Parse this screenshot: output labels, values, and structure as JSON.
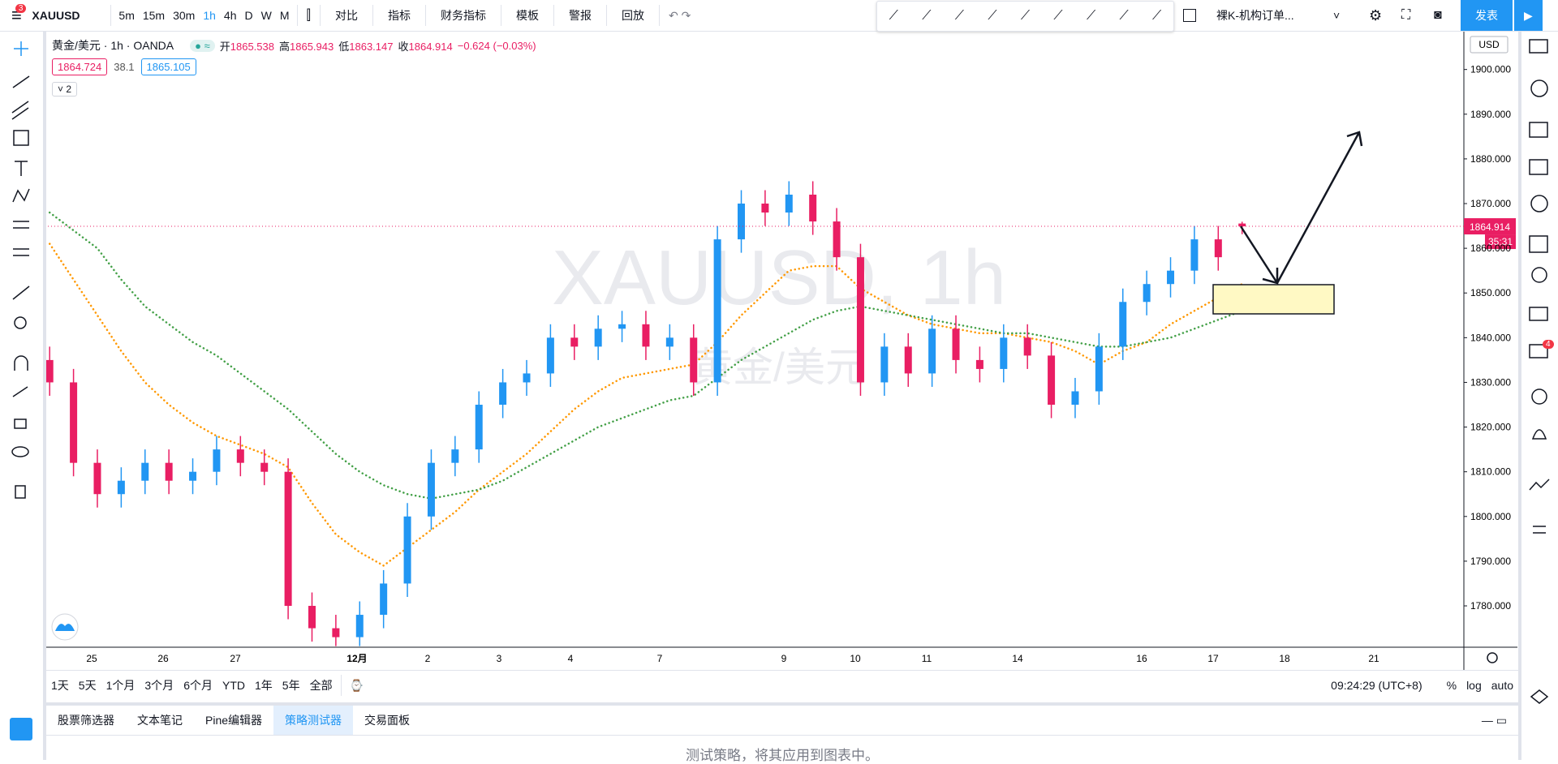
{
  "top_toolbar": {
    "badge": "3",
    "symbol": "XAUUSD",
    "intervals": [
      "5m",
      "15m",
      "30m",
      "1h",
      "4h",
      "D",
      "W",
      "M"
    ],
    "buttons": [
      "对比",
      "指标",
      "财务指标",
      "模板",
      "警报",
      "回放"
    ],
    "layout_name": "裸K-机构订单...",
    "publish": "发表"
  },
  "legend": {
    "title": "黄金/美元 · 1h · OANDA",
    "open_label": "开",
    "high_label": "高",
    "low_label": "低",
    "close_label": "收",
    "change": "−0.624 (−0.03%)",
    "bid": "1864.724",
    "spread": "38.1",
    "ask": "1865.105",
    "collapsed_count": "2"
  },
  "chart_data": {
    "type": "candlestick",
    "watermark": "XAUUSD, 1h",
    "watermark_subtitle": "黄金/美元",
    "currency": "USD",
    "countdown": "35:31",
    "x_labels": [
      "25",
      "26",
      "27",
      "12月",
      "2",
      "3",
      "4",
      "7",
      "9",
      "10",
      "11",
      "14",
      "16",
      "17",
      "18",
      "21"
    ],
    "open": [
      1835,
      1830,
      1812,
      1805,
      1808,
      1812,
      1808,
      1810,
      1815,
      1812,
      1810,
      1780,
      1775,
      1773,
      1778,
      1785,
      1800,
      1812,
      1815,
      1825,
      1830,
      1832,
      1840,
      1838,
      1842,
      1843,
      1838,
      1840,
      1830,
      1862,
      1870,
      1868,
      1872,
      1866,
      1858,
      1830,
      1838,
      1832,
      1842,
      1835,
      1833,
      1840,
      1836,
      1825,
      1828,
      1838,
      1848,
      1852,
      1855,
      1862,
      1865.538
    ],
    "high": [
      1838,
      1833,
      1815,
      1811,
      1815,
      1815,
      1813,
      1818,
      1818,
      1815,
      1813,
      1783,
      1778,
      1781,
      1788,
      1803,
      1815,
      1818,
      1828,
      1833,
      1835,
      1843,
      1843,
      1845,
      1846,
      1846,
      1843,
      1843,
      1865,
      1873,
      1873,
      1875,
      1875,
      1869,
      1861,
      1841,
      1841,
      1845,
      1845,
      1838,
      1843,
      1843,
      1839,
      1831,
      1841,
      1851,
      1855,
      1858,
      1865,
      1865,
      1865.943
    ],
    "low": [
      1827,
      1809,
      1802,
      1802,
      1805,
      1805,
      1805,
      1807,
      1809,
      1807,
      1777,
      1772,
      1771,
      1771,
      1775,
      1782,
      1797,
      1809,
      1812,
      1822,
      1827,
      1829,
      1835,
      1835,
      1839,
      1835,
      1835,
      1827,
      1827,
      1859,
      1865,
      1865,
      1863,
      1855,
      1827,
      1827,
      1829,
      1829,
      1832,
      1830,
      1830,
      1833,
      1822,
      1822,
      1825,
      1835,
      1845,
      1849,
      1852,
      1855,
      1863.147
    ],
    "close": [
      1830,
      1812,
      1805,
      1808,
      1812,
      1808,
      1810,
      1815,
      1812,
      1810,
      1780,
      1775,
      1773,
      1778,
      1785,
      1800,
      1812,
      1815,
      1825,
      1830,
      1832,
      1840,
      1838,
      1842,
      1843,
      1838,
      1840,
      1830,
      1862,
      1870,
      1868,
      1872,
      1866,
      1858,
      1830,
      1838,
      1832,
      1842,
      1835,
      1833,
      1840,
      1836,
      1825,
      1828,
      1838,
      1848,
      1852,
      1855,
      1862,
      1858,
      1864.914
    ],
    "up_color": "#2196f3",
    "down_color": "#e91e63",
    "series": [
      {
        "color": "#ff9800",
        "values": [
          1861,
          1853,
          1845,
          1837,
          1830,
          1825,
          1821,
          1818,
          1816,
          1814,
          1811,
          1803,
          1796,
          1792,
          1789,
          1793,
          1797,
          1801,
          1806,
          1810,
          1814,
          1819,
          1824,
          1828,
          1831,
          1832,
          1833,
          1834,
          1839,
          1845,
          1850,
          1855,
          1856,
          1856,
          1851,
          1848,
          1845,
          1843,
          1842,
          1841,
          1841,
          1840,
          1839,
          1837,
          1834,
          1837,
          1839,
          1843,
          1846,
          1849,
          1852
        ]
      },
      {
        "color": "#43a047",
        "values": [
          1868,
          1864,
          1860,
          1853,
          1847,
          1843,
          1839,
          1836,
          1832,
          1828,
          1824,
          1819,
          1814,
          1810,
          1807,
          1805,
          1804,
          1805,
          1806,
          1808,
          1811,
          1814,
          1817,
          1820,
          1822,
          1824,
          1826,
          1827,
          1831,
          1835,
          1838,
          1841,
          1844,
          1846,
          1847,
          1846,
          1845,
          1844,
          1843,
          1842,
          1841,
          1841,
          1840,
          1839,
          1838,
          1838,
          1839,
          1840,
          1842,
          1844,
          1846
        ]
      }
    ],
    "ylim": [
      1770.75,
      1908.47
    ],
    "yticks": [
      {
        "value": 1780,
        "label": "1780.000"
      },
      {
        "value": 1790,
        "label": "1790.000"
      },
      {
        "value": 1800,
        "label": "1800.000"
      },
      {
        "value": 1810,
        "label": "1810.000"
      },
      {
        "value": 1820,
        "label": "1820.000"
      },
      {
        "value": 1830,
        "label": "1830.000"
      },
      {
        "value": 1840,
        "label": "1840.000"
      },
      {
        "value": 1850,
        "label": "1850.000"
      },
      {
        "value": 1860,
        "label": "1860.000"
      },
      {
        "value": 1870,
        "label": "1870.000"
      },
      {
        "value": 1880,
        "label": "1880.000"
      },
      {
        "value": 1890,
        "label": "1890.000"
      },
      {
        "value": 1900,
        "label": "1900.000"
      }
    ],
    "grid": false
  },
  "range_bar": {
    "ranges": [
      "1天",
      "5天",
      "1个月",
      "3个月",
      "6个月",
      "YTD",
      "1年",
      "5年",
      "全部"
    ],
    "time": "09:24:29 (UTC+8)",
    "options": [
      "%",
      "log",
      "auto"
    ]
  },
  "bottom_panel": {
    "tabs": [
      "股票筛选器",
      "文本笔记",
      "Pine编辑器",
      "策略测试器",
      "交易面板"
    ],
    "message": "测试策略，将其应用到图表中。"
  },
  "right_sidebar": {
    "badge": "4"
  }
}
